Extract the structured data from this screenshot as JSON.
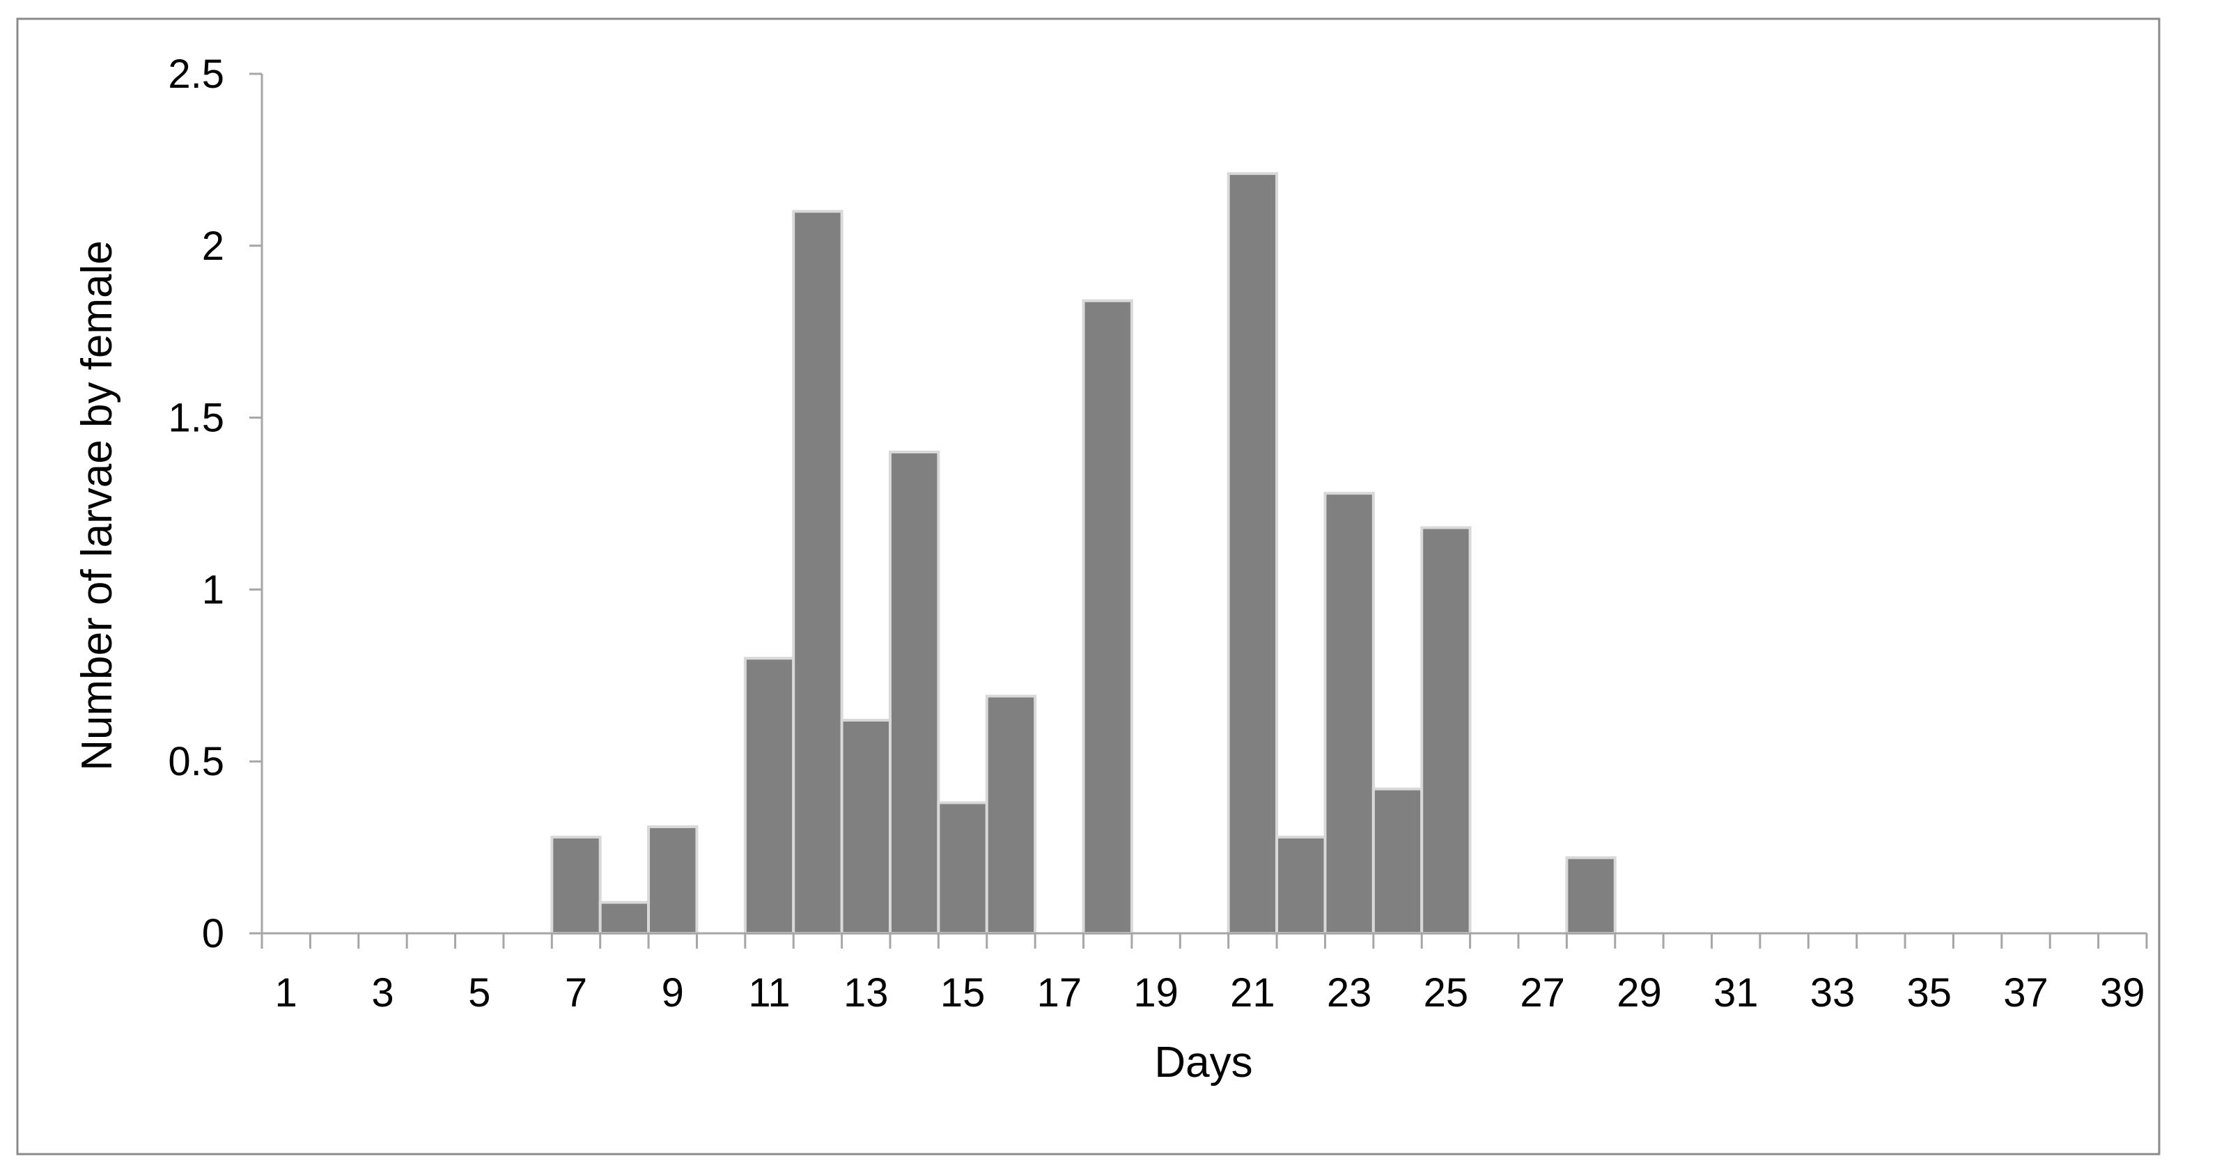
{
  "chart_data": {
    "type": "bar",
    "xlabel": "Days",
    "ylabel": "Number of larvae by female",
    "ylim": [
      0,
      2.5
    ],
    "yticks": [
      "0",
      "0.5",
      "1",
      "1.5",
      "2",
      "2.5"
    ],
    "xtick_labels": [
      "1",
      "3",
      "5",
      "7",
      "9",
      "11",
      "13",
      "15",
      "17",
      "19",
      "21",
      "23",
      "25",
      "27",
      "29",
      "31",
      "33",
      "35",
      "37",
      "39"
    ],
    "categories": [
      1,
      2,
      3,
      4,
      5,
      6,
      7,
      8,
      9,
      10,
      11,
      12,
      13,
      14,
      15,
      16,
      17,
      18,
      19,
      20,
      21,
      22,
      23,
      24,
      25,
      26,
      27,
      28,
      29,
      30,
      31,
      32,
      33,
      34,
      35,
      36,
      37,
      38,
      39
    ],
    "values": [
      0,
      0,
      0,
      0,
      0,
      0,
      0.28,
      0.09,
      0.31,
      0,
      0.8,
      2.1,
      0.62,
      1.4,
      0.38,
      0.69,
      0,
      1.84,
      0,
      0,
      2.21,
      0.28,
      1.28,
      0.42,
      1.18,
      0,
      0,
      0.22,
      0,
      0,
      0,
      0,
      0,
      0,
      0,
      0,
      0,
      0,
      0
    ],
    "bar_color": "#808080",
    "bar_edge_color": "#d9d9d9",
    "axis_color": "#a6a6a6",
    "grid": false,
    "legend": "none"
  }
}
